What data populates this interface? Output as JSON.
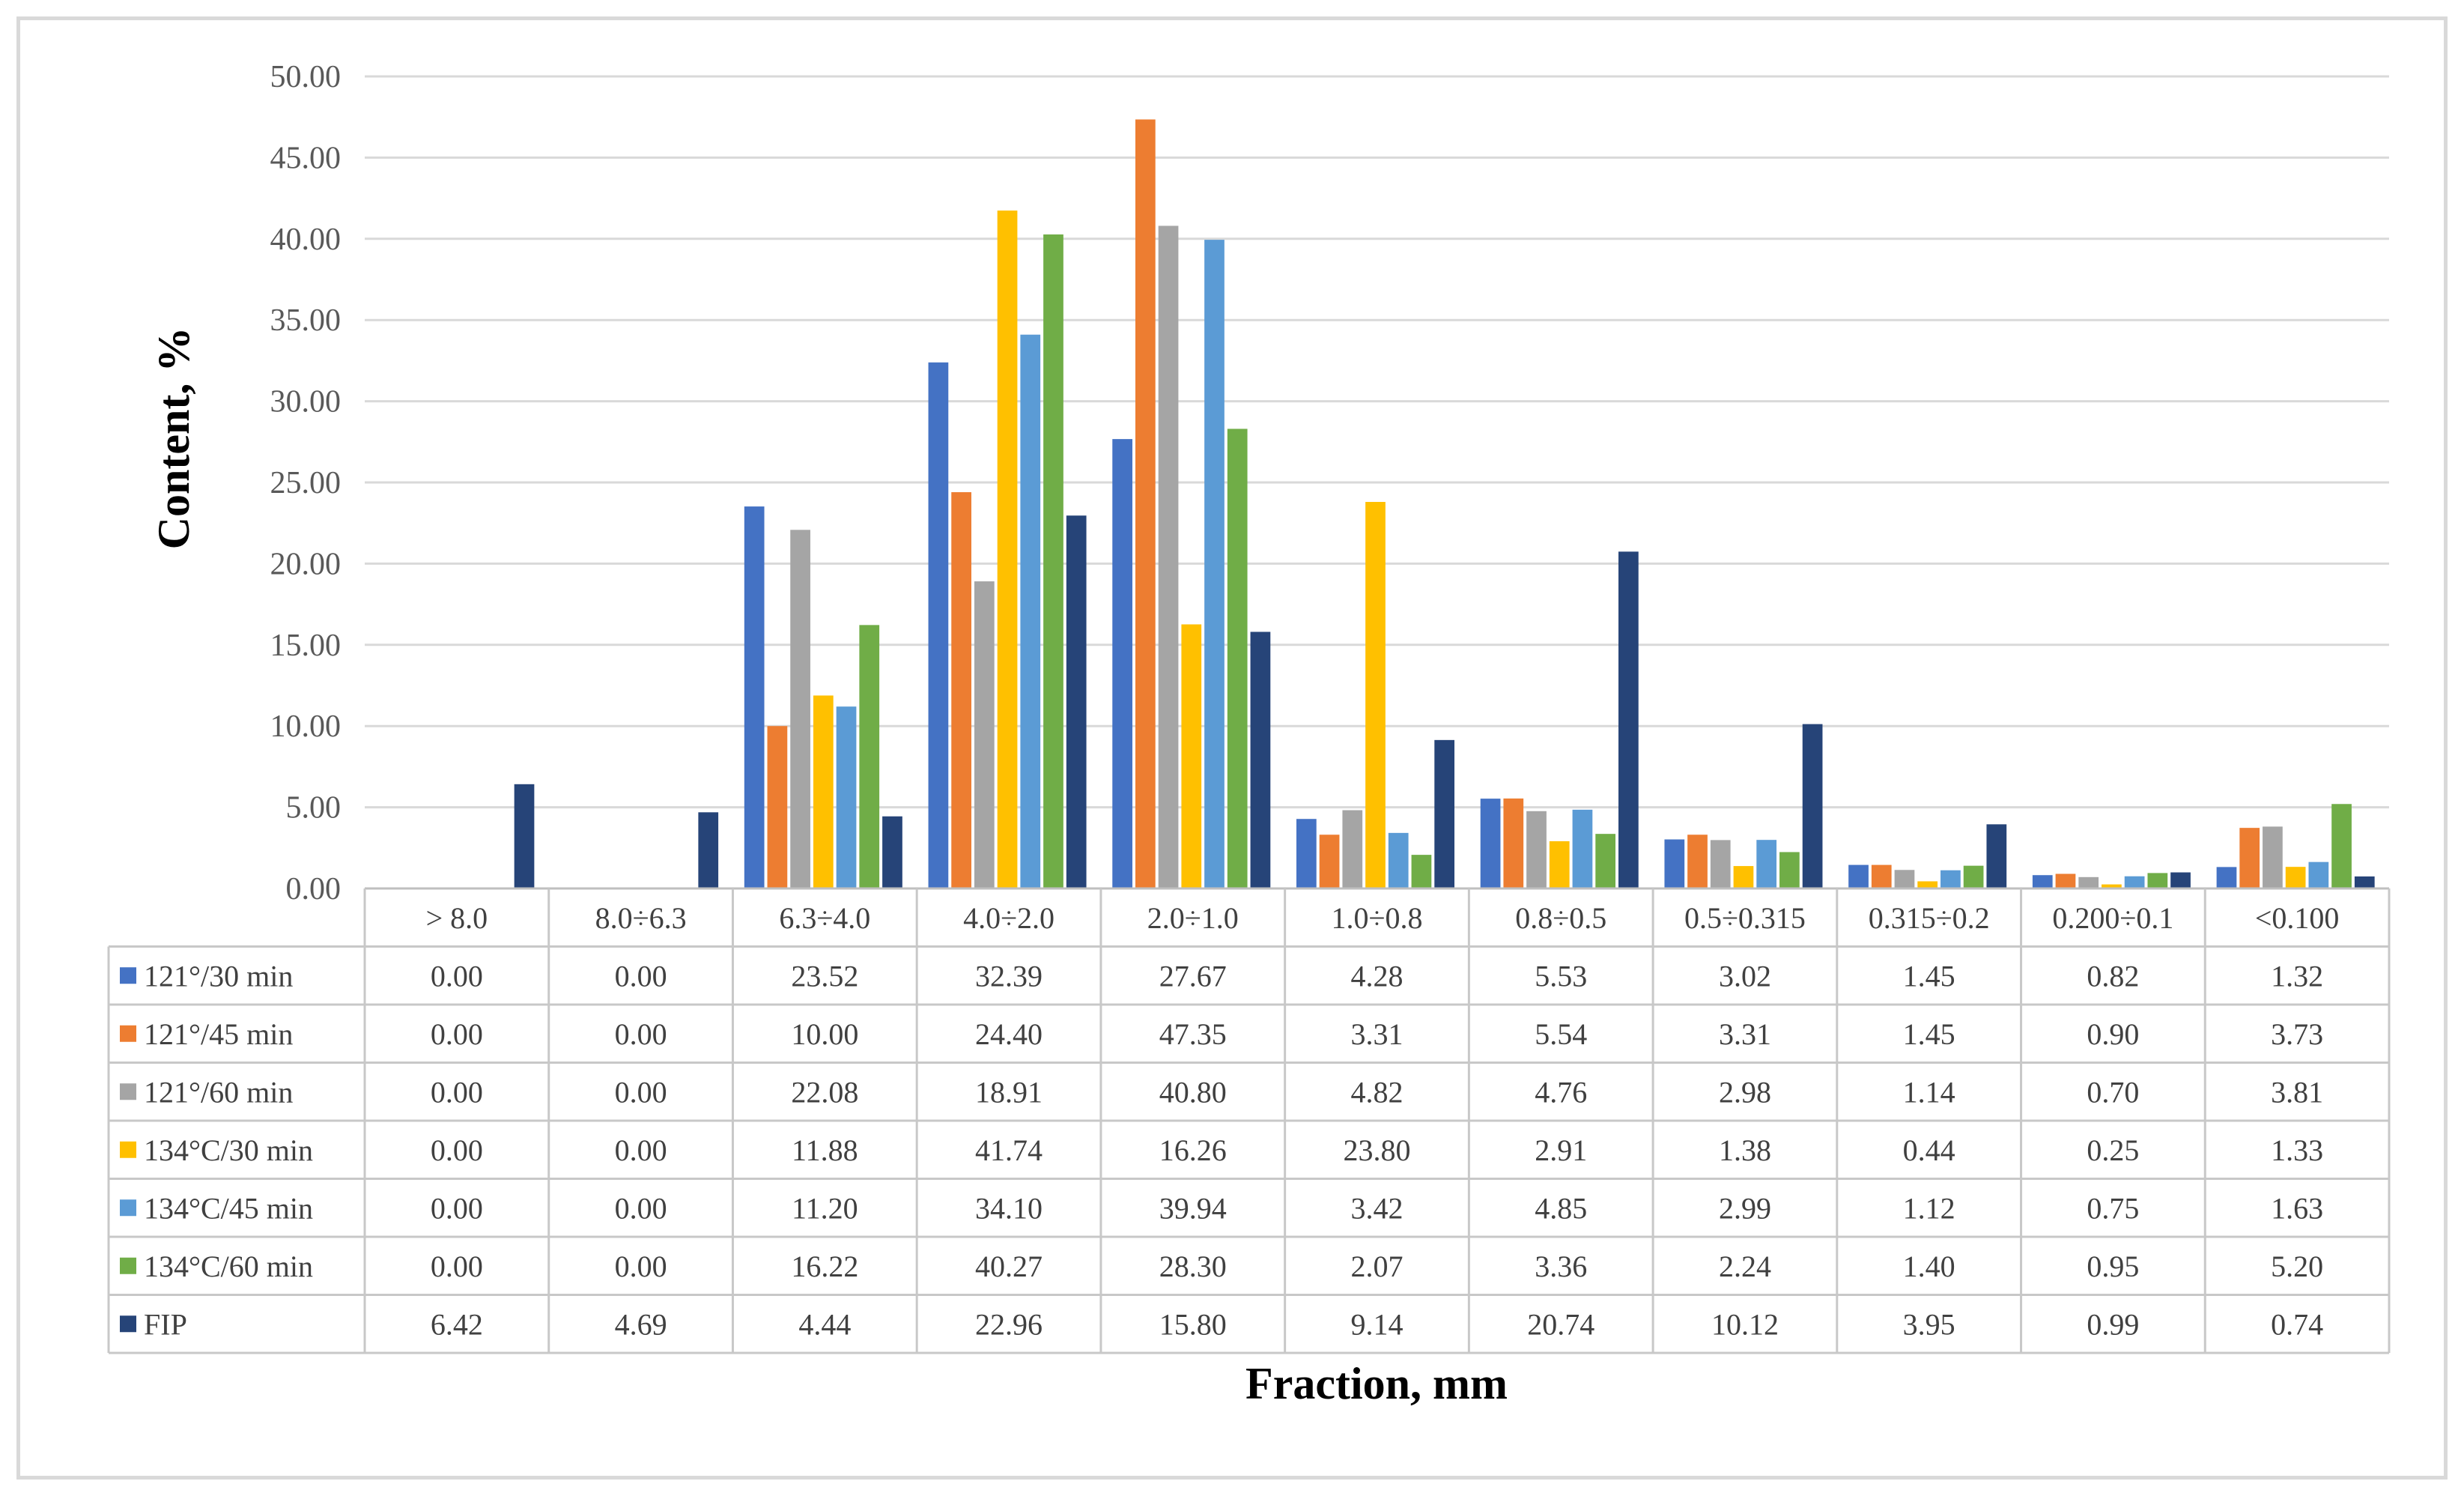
{
  "chart_data": {
    "type": "bar",
    "xlabel": "Fraction, mm",
    "ylabel": "Content, %",
    "ylim": [
      0,
      50
    ],
    "yticks": [
      "0.00",
      "5.00",
      "10.00",
      "15.00",
      "20.00",
      "25.00",
      "30.00",
      "35.00",
      "40.00",
      "45.00",
      "50.00"
    ],
    "grid": true,
    "legend": "data-table",
    "categories": [
      "> 8.0",
      "8.0÷6.3",
      "6.3÷4.0",
      "4.0÷2.0",
      "2.0÷1.0",
      "1.0÷0.8",
      "0.8÷0.5",
      "0.5÷0.315",
      "0.315÷0.2",
      "0.200÷0.1",
      "<0.100"
    ],
    "series": [
      {
        "name": "121°/30 min",
        "color": "#4472c4",
        "values": [
          0.0,
          0.0,
          23.52,
          32.39,
          27.67,
          4.28,
          5.53,
          3.02,
          1.45,
          0.82,
          1.32
        ],
        "labels": [
          "0.00",
          "0.00",
          "23.52",
          "32.39",
          "27.67",
          "4.28",
          "5.53",
          "3.02",
          "1.45",
          "0.82",
          "1.32"
        ]
      },
      {
        "name": "121°/45 min",
        "color": "#ed7d31",
        "values": [
          0.0,
          0.0,
          10.0,
          24.4,
          47.35,
          3.31,
          5.54,
          3.31,
          1.45,
          0.9,
          3.73
        ],
        "labels": [
          "0.00",
          "0.00",
          "10.00",
          "24.40",
          "47.35",
          "3.31",
          "5.54",
          "3.31",
          "1.45",
          "0.90",
          "3.73"
        ]
      },
      {
        "name": "121°/60 min",
        "color": "#a5a5a5",
        "values": [
          0.0,
          0.0,
          22.08,
          18.91,
          40.8,
          4.82,
          4.76,
          2.98,
          1.14,
          0.7,
          3.81
        ],
        "labels": [
          "0.00",
          "0.00",
          "22.08",
          "18.91",
          "40.80",
          "4.82",
          "4.76",
          "2.98",
          "1.14",
          "0.70",
          "3.81"
        ]
      },
      {
        "name": "134°C/30 min",
        "color": "#ffc000",
        "values": [
          0.0,
          0.0,
          11.88,
          41.74,
          16.26,
          23.8,
          2.91,
          1.38,
          0.44,
          0.25,
          1.33
        ],
        "labels": [
          "0.00",
          "0.00",
          "11.88",
          "41.74",
          "16.26",
          "23.80",
          "2.91",
          "1.38",
          "0.44",
          "0.25",
          "1.33"
        ]
      },
      {
        "name": "134°C/45 min",
        "color": "#5b9bd5",
        "values": [
          0.0,
          0.0,
          11.2,
          34.1,
          39.94,
          3.42,
          4.85,
          2.99,
          1.12,
          0.75,
          1.63
        ],
        "labels": [
          "0.00",
          "0.00",
          "11.20",
          "34.10",
          "39.94",
          "3.42",
          "4.85",
          "2.99",
          "1.12",
          "0.75",
          "1.63"
        ]
      },
      {
        "name": "134°C/60 min",
        "color": "#70ad47",
        "values": [
          0.0,
          0.0,
          16.22,
          40.27,
          28.3,
          2.07,
          3.36,
          2.24,
          1.4,
          0.95,
          5.2
        ],
        "labels": [
          "0.00",
          "0.00",
          "16.22",
          "40.27",
          "28.30",
          "2.07",
          "3.36",
          "2.24",
          "1.40",
          "0.95",
          "5.20"
        ]
      },
      {
        "name": "FIP",
        "color": "#264478",
        "values": [
          6.42,
          4.69,
          4.44,
          22.96,
          15.8,
          9.14,
          20.74,
          10.12,
          3.95,
          0.99,
          0.74
        ],
        "labels": [
          "6.42",
          "4.69",
          "4.44",
          "22.96",
          "15.80",
          "9.14",
          "20.74",
          "10.12",
          "3.95",
          "0.99",
          "0.74"
        ]
      }
    ]
  }
}
